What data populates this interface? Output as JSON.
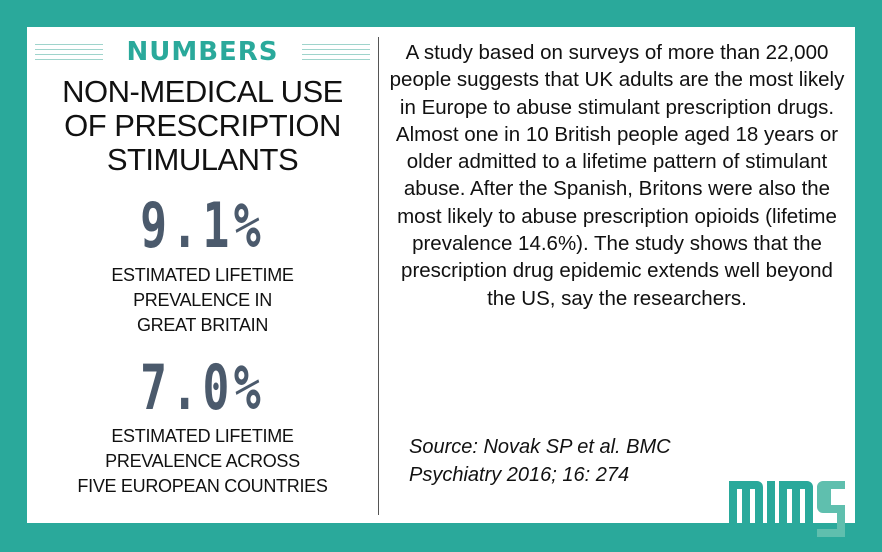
{
  "header": {
    "label": "NUMBERS"
  },
  "title": [
    "NON-MEDICAL USE",
    "OF PRESCRIPTION",
    "STIMULANTS"
  ],
  "stats": [
    {
      "value": "9.1%",
      "caption": [
        "ESTIMATED LIFETIME",
        "PREVALENCE IN",
        "GREAT BRITAIN"
      ]
    },
    {
      "value": "7.0%",
      "caption": [
        "ESTIMATED LIFETIME",
        "PREVALENCE ACROSS",
        "FIVE EUROPEAN COUNTRIES"
      ]
    }
  ],
  "body": "A study based on surveys of more than 22,000 people suggests that UK adults are the most likely in Europe to abuse stimulant prescription drugs. Almost one in 10 British people aged 18 years or older admitted to a lifetime pattern of stimulant abuse.  After the Spanish, Britons were also the most likely to abuse prescription opioids (lifetime prevalence 14.6%). The study shows that the prescription drug epidemic extends well beyond the US, say the researchers.",
  "source": [
    "Source: Novak SP et al. BMC",
    "Psychiatry 2016; 16: 274"
  ],
  "logo": {
    "text": "MIMS"
  },
  "colors": {
    "teal": "#2aa99b",
    "stat": "#4b5a6c"
  }
}
